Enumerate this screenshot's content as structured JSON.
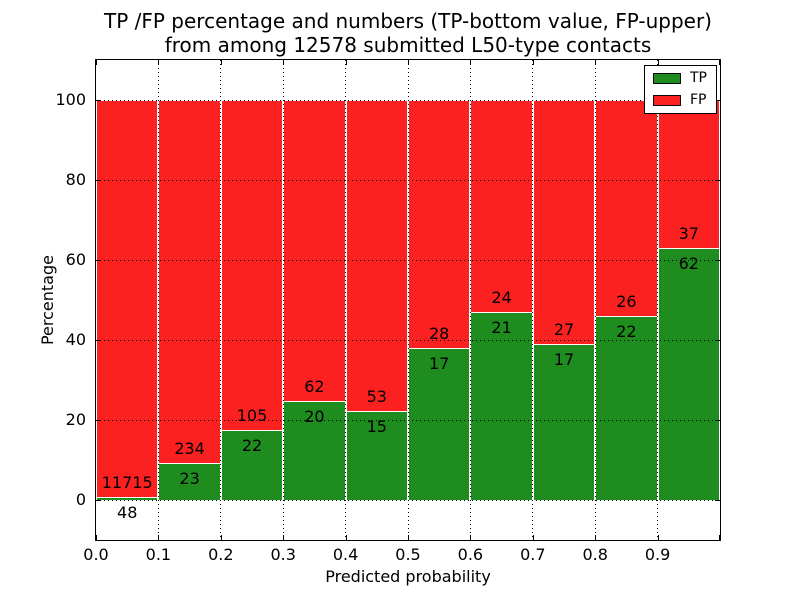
{
  "title": {
    "line1": "TP /FP percentage and numbers (TP-bottom value, FP-upper)",
    "line2": "from among 12578 submitted L50-type contacts"
  },
  "axes": {
    "xlabel": "Predicted probability",
    "ylabel": "Percentage"
  },
  "chart_data": {
    "type": "bar",
    "stacked": true,
    "note": "Each 0.1-wide probability bin is a 100%-stacked bar: TP share (green) on bottom, FP share (red) on top. Numeric labels are raw counts: TP count below boundary, FP count above boundary.",
    "title": "TP /FP percentage and numbers (TP-bottom value, FP-upper) from among 12578 submitted L50-type contacts",
    "xlabel": "Predicted probability",
    "ylabel": "Percentage",
    "bin_edges": [
      0.0,
      0.1,
      0.2,
      0.3,
      0.4,
      0.5,
      0.6,
      0.7,
      0.8,
      0.9,
      1.0
    ],
    "xticks": [
      "0.0",
      "0.1",
      "0.2",
      "0.3",
      "0.4",
      "0.5",
      "0.6",
      "0.7",
      "0.8",
      "0.9"
    ],
    "yticks": [
      0,
      20,
      40,
      60,
      80,
      100
    ],
    "xlim": [
      0.0,
      1.0
    ],
    "ylim": [
      -10,
      110
    ],
    "grid": "dotted, drawn above bars",
    "total_submitted": 12578,
    "series": [
      {
        "name": "TP",
        "color": "#1e8c1e",
        "counts": [
          48,
          23,
          22,
          20,
          15,
          17,
          21,
          17,
          22,
          62
        ]
      },
      {
        "name": "FP",
        "color": "#fb2121",
        "counts": [
          11715,
          234,
          105,
          62,
          53,
          28,
          24,
          27,
          26,
          37
        ]
      }
    ],
    "tp_percent_per_bin": [
      0.41,
      8.95,
      17.32,
      24.39,
      22.06,
      37.78,
      46.67,
      38.64,
      45.83,
      62.63
    ],
    "legend": {
      "position": "upper right",
      "entries": [
        {
          "label": "TP",
          "color": "#1e8c1e"
        },
        {
          "label": "FP",
          "color": "#fb2121"
        }
      ]
    }
  }
}
